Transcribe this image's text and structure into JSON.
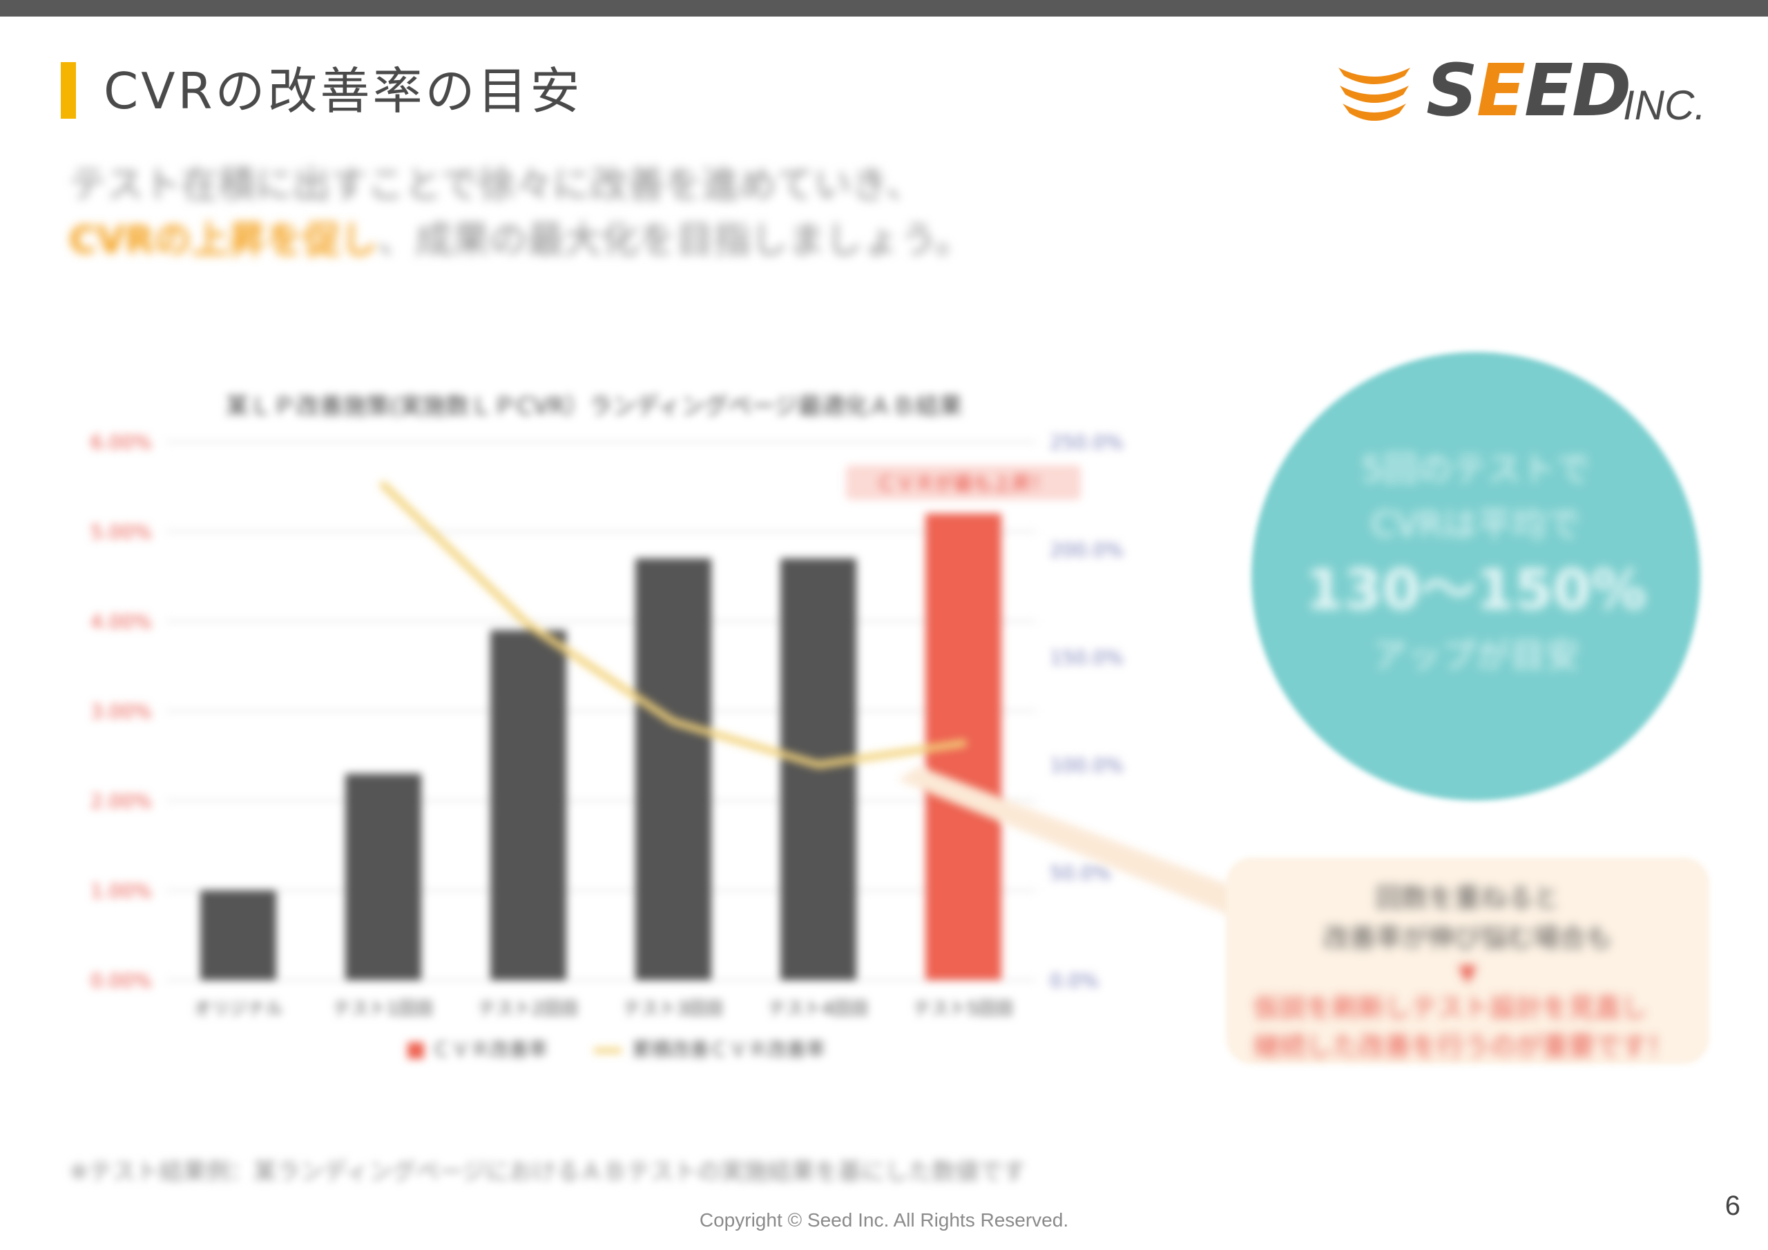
{
  "slide": {
    "title": "CVRの改善率の目安",
    "page_number": "6",
    "copyright": "Copyright © Seed Inc. All Rights Reserved."
  },
  "logo": {
    "word_prefix": "S",
    "word_e1": "E",
    "word_e2": "E",
    "word_suffix": "D",
    "inc": "INC.",
    "colors": {
      "mark": "#ef8a12",
      "text": "#4d4d4d"
    }
  },
  "lead": {
    "line1": "テスト在積に出すことで徐々に改善を進めていき、",
    "line2_highlight": "CVRの上昇を促し",
    "line2_rest": "、成果の最大化を目指しましょう。"
  },
  "chart_data": {
    "type": "bar",
    "title": "某ＬＰ改善施策(実施数ＬＰCVR）ランディングページ最適化ＡＢ結果",
    "categories": [
      "オリジナル",
      "テスト1回目",
      "テスト2回目",
      "テスト3回目",
      "テスト4回目",
      "テスト5回目"
    ],
    "series": [
      {
        "name": "ＣＶＲ改善率",
        "type": "bar",
        "axis": "left",
        "values": [
          1.0,
          2.3,
          3.9,
          4.7,
          4.7,
          5.2
        ],
        "colors": [
          "#555555",
          "#555555",
          "#555555",
          "#555555",
          "#555555",
          "#ee6352"
        ]
      },
      {
        "name": "累積改善ＣＶＲ改善率",
        "type": "line",
        "axis": "right",
        "values": [
          null,
          230,
          165,
          120,
          100,
          110
        ],
        "color": "#f2d27a"
      }
    ],
    "y_left": {
      "ticks": [
        "0.00%",
        "1.00%",
        "2.00%",
        "3.00%",
        "4.00%",
        "5.00%",
        "6.00%"
      ],
      "min": 0,
      "max": 6,
      "color": "#e8564a"
    },
    "y_right": {
      "ticks": [
        "0.0%",
        "50.0%",
        "100.0%",
        "150.0%",
        "200.0%",
        "250.0%"
      ],
      "min": 0,
      "max": 250,
      "color": "#7a7fb8"
    },
    "annotation": "ＣＶＲが最も上昇！",
    "legend_position": "bottom",
    "grid": true
  },
  "circle_callout": {
    "line1": "5回のテストで",
    "line2": "CVRは平均で",
    "line3": "130〜150%",
    "line4": "アップが目安",
    "color": "#7ccfcf"
  },
  "note_box": {
    "line1": "回数を重ねると",
    "line2": "改善率が伸び悩む場合も",
    "arrow": "▼",
    "red_line1": "仮説を刷新しテスト設計を見直し",
    "red_line2": "継続した改善を行うのが重要です！",
    "color": "#fdf2e4"
  },
  "source": "※テスト結果例：某ランディングページにおけるＡＢテストの実施結果を基にした数値です"
}
